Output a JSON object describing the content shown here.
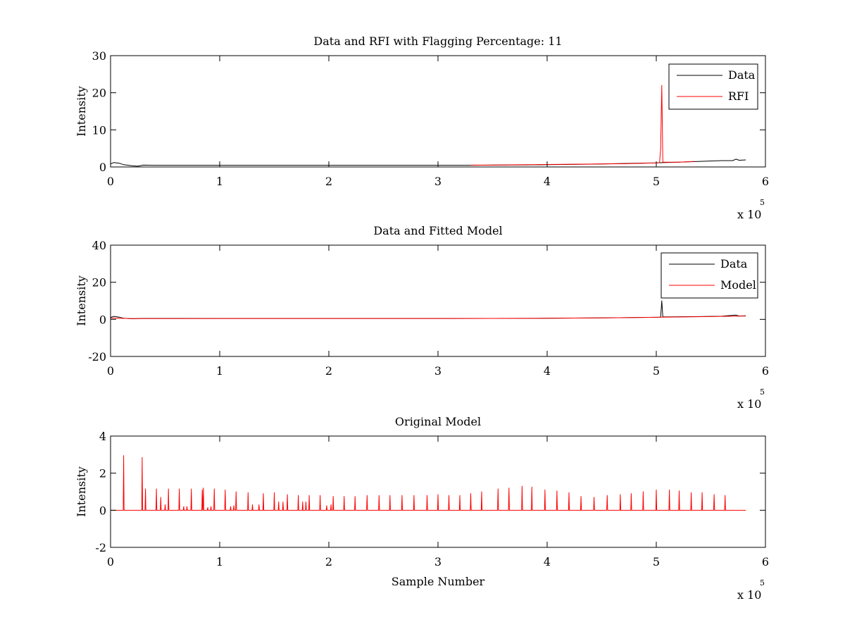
{
  "chart_data": [
    {
      "type": "line",
      "title": "Data and RFI with Flagging Percentage: 11",
      "xlabel": "",
      "ylabel": "Intensity",
      "xlim": [
        0,
        600000
      ],
      "ylim": [
        0,
        30
      ],
      "xticks": [
        0,
        1,
        2,
        3,
        4,
        5,
        6
      ],
      "xtick_labels": [
        "0",
        "1",
        "2",
        "3",
        "4",
        "5",
        "6"
      ],
      "yticks": [
        0,
        10,
        20,
        30
      ],
      "ytick_labels": [
        "0",
        "10",
        "20",
        "30"
      ],
      "x_multiplier_label": "x 10",
      "x_multiplier_exponent": "5",
      "legend_position": "top-right",
      "series": [
        {
          "name": "Data",
          "color": "#000000",
          "points": [
            [
              0,
              0.8
            ],
            [
              3000,
              1.2
            ],
            [
              8000,
              1.0
            ],
            [
              12000,
              0.6
            ],
            [
              20000,
              0.3
            ],
            [
              25000,
              0.2
            ],
            [
              30000,
              0.5
            ],
            [
              40000,
              0.45
            ],
            [
              60000,
              0.45
            ],
            [
              100000,
              0.45
            ],
            [
              150000,
              0.45
            ],
            [
              200000,
              0.45
            ],
            [
              250000,
              0.45
            ],
            [
              300000,
              0.45
            ],
            [
              330000,
              0.45
            ],
            [
              350000,
              0.5
            ],
            [
              380000,
              0.55
            ],
            [
              400000,
              0.6
            ],
            [
              430000,
              0.7
            ],
            [
              450000,
              0.8
            ],
            [
              480000,
              1.0
            ],
            [
              500000,
              1.1
            ],
            [
              505000,
              1.15
            ],
            [
              520000,
              1.3
            ],
            [
              540000,
              1.5
            ],
            [
              560000,
              1.7
            ],
            [
              570000,
              1.7
            ],
            [
              573000,
              2.1
            ],
            [
              576000,
              1.8
            ],
            [
              582000,
              1.9
            ]
          ]
        },
        {
          "name": "RFI",
          "color": "#ff0000",
          "points": [
            [
              330000,
              0.5
            ],
            [
              345000,
              0.5
            ],
            [
              475000,
              0.9
            ],
            [
              500000,
              1.1
            ],
            [
              503000,
              1.2
            ],
            [
              504000,
              5.0
            ],
            [
              505000,
              22.0
            ],
            [
              506000,
              1.3
            ],
            [
              520000,
              1.3
            ],
            [
              535000,
              1.5
            ]
          ]
        }
      ]
    },
    {
      "type": "line",
      "title": "Data and Fitted Model",
      "xlabel": "",
      "ylabel": "Intensity",
      "xlim": [
        0,
        600000
      ],
      "ylim": [
        -20,
        40
      ],
      "xticks": [
        0,
        1,
        2,
        3,
        4,
        5,
        6
      ],
      "xtick_labels": [
        "0",
        "1",
        "2",
        "3",
        "4",
        "5",
        "6"
      ],
      "yticks": [
        -20,
        0,
        20,
        40
      ],
      "ytick_labels": [
        "-20",
        "0",
        "20",
        "40"
      ],
      "x_multiplier_label": "x 10",
      "x_multiplier_exponent": "5",
      "legend_position": "top-right",
      "series": [
        {
          "name": "Data",
          "color": "#000000",
          "points": [
            [
              0,
              1.0
            ],
            [
              3000,
              1.6
            ],
            [
              8000,
              1.2
            ],
            [
              12000,
              0.6
            ],
            [
              20000,
              0.3
            ],
            [
              30000,
              0.5
            ],
            [
              100000,
              0.45
            ],
            [
              200000,
              0.45
            ],
            [
              300000,
              0.45
            ],
            [
              350000,
              0.5
            ],
            [
              400000,
              0.6
            ],
            [
              450000,
              0.8
            ],
            [
              500000,
              1.1
            ],
            [
              504000,
              1.2
            ],
            [
              505000,
              10.0
            ],
            [
              506000,
              1.3
            ],
            [
              540000,
              1.5
            ],
            [
              560000,
              1.7
            ],
            [
              573000,
              2.3
            ],
            [
              576000,
              1.8
            ],
            [
              582000,
              1.9
            ]
          ]
        },
        {
          "name": "Model",
          "color": "#ff0000",
          "points": [
            [
              0,
              0.7
            ],
            [
              20000,
              0.4
            ],
            [
              100000,
              0.45
            ],
            [
              200000,
              0.45
            ],
            [
              300000,
              0.45
            ],
            [
              400000,
              0.6
            ],
            [
              450000,
              0.8
            ],
            [
              500000,
              1.1
            ],
            [
              550000,
              1.5
            ],
            [
              582000,
              1.8
            ]
          ]
        }
      ]
    },
    {
      "type": "line",
      "title": "Original Model",
      "xlabel": "Sample Number",
      "ylabel": "Intensity",
      "xlim": [
        0,
        600000
      ],
      "ylim": [
        -2,
        4
      ],
      "xticks": [
        0,
        1,
        2,
        3,
        4,
        5,
        6
      ],
      "xtick_labels": [
        "0",
        "1",
        "2",
        "3",
        "4",
        "5",
        "6"
      ],
      "yticks": [
        -2,
        0,
        2,
        4
      ],
      "ytick_labels": [
        "-2",
        "0",
        "2",
        "4"
      ],
      "x_multiplier_label": "x 10",
      "x_multiplier_exponent": "5",
      "series": [
        {
          "color": "#ff0000",
          "baseline": 0,
          "x_range": [
            0,
            582000
          ],
          "spikes": [
            [
              12000,
              2.95
            ],
            [
              29000,
              2.85
            ],
            [
              32000,
              1.15
            ],
            [
              42000,
              1.15
            ],
            [
              46000,
              0.7
            ],
            [
              50000,
              0.3
            ],
            [
              53000,
              1.15
            ],
            [
              63000,
              1.15
            ],
            [
              67000,
              0.2
            ],
            [
              70000,
              0.2
            ],
            [
              74000,
              1.15
            ],
            [
              84000,
              1.1
            ],
            [
              85000,
              1.2
            ],
            [
              89000,
              0.15
            ],
            [
              92000,
              0.2
            ],
            [
              95000,
              1.15
            ],
            [
              105000,
              1.1
            ],
            [
              110000,
              0.2
            ],
            [
              113000,
              0.25
            ],
            [
              115000,
              1.0
            ],
            [
              126000,
              0.95
            ],
            [
              130000,
              0.3
            ],
            [
              136000,
              0.3
            ],
            [
              140000,
              0.9
            ],
            [
              150000,
              0.95
            ],
            [
              154000,
              0.45
            ],
            [
              158000,
              0.45
            ],
            [
              162000,
              0.85
            ],
            [
              172000,
              0.8
            ],
            [
              176000,
              0.45
            ],
            [
              179000,
              0.45
            ],
            [
              182000,
              0.8
            ],
            [
              192000,
              0.8
            ],
            [
              198000,
              0.25
            ],
            [
              202000,
              0.3
            ],
            [
              204000,
              0.75
            ],
            [
              214000,
              0.75
            ],
            [
              224000,
              0.75
            ],
            [
              235000,
              0.8
            ],
            [
              246000,
              0.8
            ],
            [
              256000,
              0.8
            ],
            [
              267000,
              0.8
            ],
            [
              278000,
              0.8
            ],
            [
              290000,
              0.8
            ],
            [
              300000,
              0.85
            ],
            [
              310000,
              0.8
            ],
            [
              320000,
              0.8
            ],
            [
              330000,
              0.9
            ],
            [
              340000,
              1.0
            ],
            [
              355000,
              1.15
            ],
            [
              365000,
              1.2
            ],
            [
              377000,
              1.3
            ],
            [
              386000,
              1.25
            ],
            [
              398000,
              1.1
            ],
            [
              409000,
              1.05
            ],
            [
              420000,
              0.95
            ],
            [
              431000,
              0.75
            ],
            [
              443000,
              0.7
            ],
            [
              455000,
              0.8
            ],
            [
              467000,
              0.85
            ],
            [
              477000,
              0.9
            ],
            [
              488000,
              1.0
            ],
            [
              500000,
              1.1
            ],
            [
              512000,
              1.1
            ],
            [
              521000,
              1.05
            ],
            [
              532000,
              0.95
            ],
            [
              542000,
              0.95
            ],
            [
              553000,
              0.85
            ],
            [
              563000,
              0.8
            ]
          ]
        }
      ]
    }
  ]
}
